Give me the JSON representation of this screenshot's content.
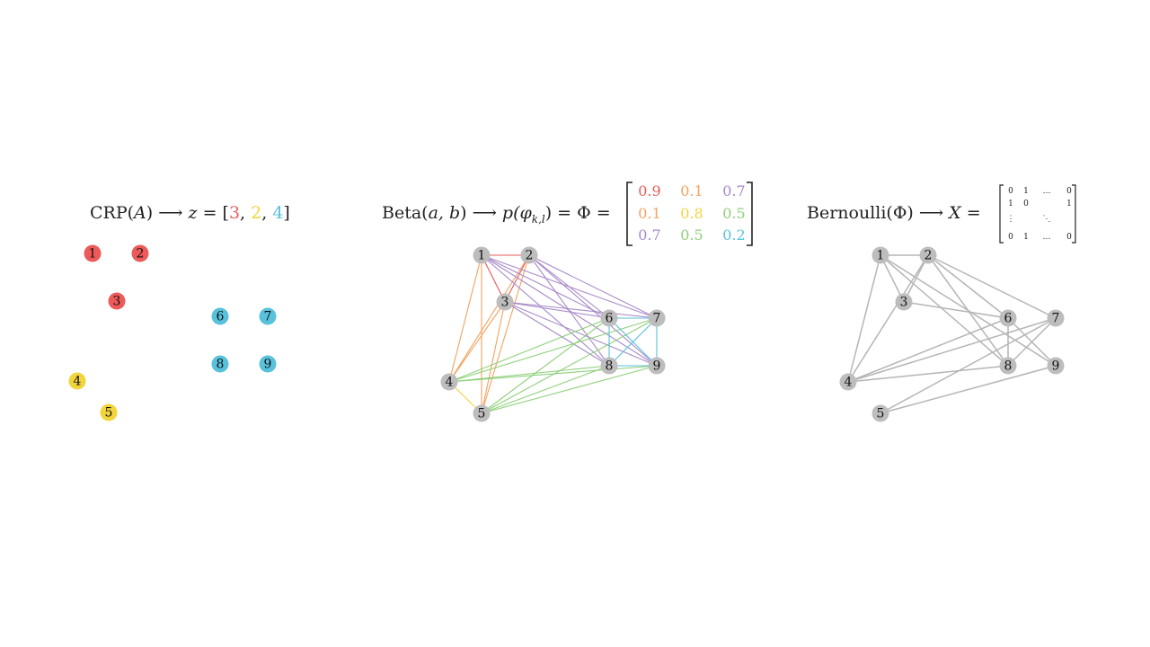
{
  "colors": {
    "red": "#ec5a5a",
    "orange": "#f4a35f",
    "yellow": "#f2d43b",
    "purple": "#a88ac8",
    "green": "#8ed07a",
    "blue": "#58c2dc",
    "gray_node": "#bdbdbd",
    "gray_edge": "#b5b5b5",
    "text": "#222222"
  },
  "panel1": {
    "formula_prefix": "CRP(",
    "formula_var": "A",
    "formula_mid": ") ⟶ ",
    "formula_z": "z",
    "formula_eq": " = [",
    "vector": [
      "3",
      "2",
      "4"
    ],
    "vector_colors": [
      "red",
      "yellow",
      "blue"
    ],
    "comma": ", ",
    "formula_close": "]",
    "nodes": [
      {
        "label": "1",
        "color": "red"
      },
      {
        "label": "2",
        "color": "red"
      },
      {
        "label": "3",
        "color": "red"
      },
      {
        "label": "4",
        "color": "yellow"
      },
      {
        "label": "5",
        "color": "yellow"
      },
      {
        "label": "6",
        "color": "blue"
      },
      {
        "label": "7",
        "color": "blue"
      },
      {
        "label": "8",
        "color": "blue"
      },
      {
        "label": "9",
        "color": "blue"
      }
    ]
  },
  "panel2": {
    "formula_prefix": "Beta(",
    "formula_args": "a, b",
    "formula_mid": ") ⟶ ",
    "formula_p": "p",
    "formula_phi": "(φ",
    "formula_sub": "k,l",
    "formula_end": ") = Φ =",
    "matrix": [
      [
        {
          "v": "0.9",
          "c": "red"
        },
        {
          "v": "0.1",
          "c": "orange"
        },
        {
          "v": "0.7",
          "c": "purple"
        }
      ],
      [
        {
          "v": "0.1",
          "c": "orange"
        },
        {
          "v": "0.8",
          "c": "yellow"
        },
        {
          "v": "0.5",
          "c": "green"
        }
      ],
      [
        {
          "v": "0.7",
          "c": "purple"
        },
        {
          "v": "0.5",
          "c": "green"
        },
        {
          "v": "0.2",
          "c": "blue"
        }
      ]
    ],
    "nodes": [
      "1",
      "2",
      "3",
      "4",
      "5",
      "6",
      "7",
      "8",
      "9"
    ],
    "edges": [
      {
        "a": "1",
        "b": "2",
        "c": "red"
      },
      {
        "a": "1",
        "b": "3",
        "c": "red"
      },
      {
        "a": "2",
        "b": "3",
        "c": "red"
      },
      {
        "a": "1",
        "b": "4",
        "c": "orange"
      },
      {
        "a": "1",
        "b": "5",
        "c": "orange"
      },
      {
        "a": "2",
        "b": "4",
        "c": "orange"
      },
      {
        "a": "2",
        "b": "5",
        "c": "orange"
      },
      {
        "a": "3",
        "b": "4",
        "c": "orange"
      },
      {
        "a": "3",
        "b": "5",
        "c": "orange"
      },
      {
        "a": "4",
        "b": "5",
        "c": "yellow"
      },
      {
        "a": "1",
        "b": "6",
        "c": "purple"
      },
      {
        "a": "1",
        "b": "7",
        "c": "purple"
      },
      {
        "a": "1",
        "b": "8",
        "c": "purple"
      },
      {
        "a": "1",
        "b": "9",
        "c": "purple"
      },
      {
        "a": "2",
        "b": "6",
        "c": "purple"
      },
      {
        "a": "2",
        "b": "7",
        "c": "purple"
      },
      {
        "a": "2",
        "b": "8",
        "c": "purple"
      },
      {
        "a": "2",
        "b": "9",
        "c": "purple"
      },
      {
        "a": "3",
        "b": "6",
        "c": "purple"
      },
      {
        "a": "3",
        "b": "7",
        "c": "purple"
      },
      {
        "a": "3",
        "b": "8",
        "c": "purple"
      },
      {
        "a": "3",
        "b": "9",
        "c": "purple"
      },
      {
        "a": "4",
        "b": "6",
        "c": "green"
      },
      {
        "a": "4",
        "b": "7",
        "c": "green"
      },
      {
        "a": "4",
        "b": "8",
        "c": "green"
      },
      {
        "a": "4",
        "b": "9",
        "c": "green"
      },
      {
        "a": "5",
        "b": "6",
        "c": "green"
      },
      {
        "a": "5",
        "b": "7",
        "c": "green"
      },
      {
        "a": "5",
        "b": "8",
        "c": "green"
      },
      {
        "a": "5",
        "b": "9",
        "c": "green"
      },
      {
        "a": "6",
        "b": "7",
        "c": "blue"
      },
      {
        "a": "6",
        "b": "8",
        "c": "blue"
      },
      {
        "a": "6",
        "b": "9",
        "c": "blue"
      },
      {
        "a": "7",
        "b": "8",
        "c": "blue"
      },
      {
        "a": "7",
        "b": "9",
        "c": "blue"
      },
      {
        "a": "8",
        "b": "9",
        "c": "blue"
      }
    ]
  },
  "panel3": {
    "formula_prefix": "Bernoulli(Φ) ⟶ ",
    "formula_X": "X",
    "formula_eq": " =",
    "matrix_rows": [
      [
        "0",
        "1",
        "…",
        "0"
      ],
      [
        "1",
        "0",
        "",
        "1"
      ],
      [
        "⋮",
        "",
        "⋱",
        ""
      ],
      [
        "0",
        "1",
        "…",
        "0"
      ]
    ],
    "nodes": [
      "1",
      "2",
      "3",
      "4",
      "5",
      "6",
      "7",
      "8",
      "9"
    ],
    "edges": [
      {
        "a": "1",
        "b": "2"
      },
      {
        "a": "1",
        "b": "3"
      },
      {
        "a": "1",
        "b": "4"
      },
      {
        "a": "1",
        "b": "8"
      },
      {
        "a": "1",
        "b": "9"
      },
      {
        "a": "2",
        "b": "3"
      },
      {
        "a": "2",
        "b": "4"
      },
      {
        "a": "2",
        "b": "6"
      },
      {
        "a": "2",
        "b": "7"
      },
      {
        "a": "2",
        "b": "8"
      },
      {
        "a": "3",
        "b": "6"
      },
      {
        "a": "4",
        "b": "6"
      },
      {
        "a": "4",
        "b": "7"
      },
      {
        "a": "4",
        "b": "8"
      },
      {
        "a": "5",
        "b": "7"
      },
      {
        "a": "5",
        "b": "9"
      },
      {
        "a": "6",
        "b": "8"
      },
      {
        "a": "6",
        "b": "9"
      },
      {
        "a": "7",
        "b": "8"
      }
    ]
  }
}
